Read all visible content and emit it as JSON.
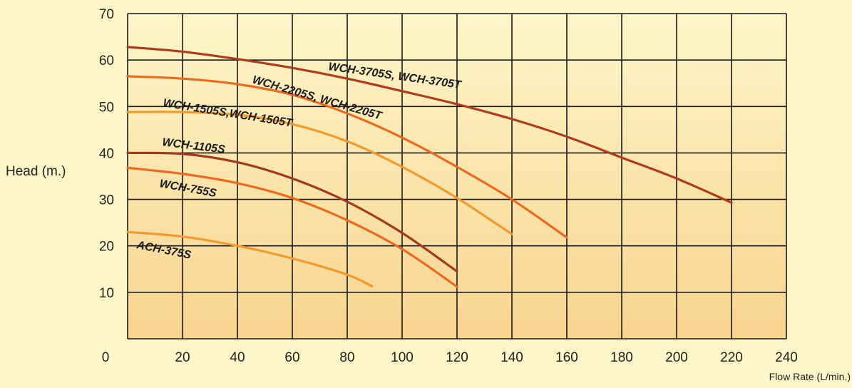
{
  "chart_data": {
    "type": "line",
    "title": "",
    "xlabel": "Flow Rate (L/min.)",
    "ylabel": "Head (m.)",
    "xlim": [
      0,
      240
    ],
    "ylim": [
      0,
      70
    ],
    "xticks": [
      "0",
      "20",
      "40",
      "60",
      "80",
      "100",
      "120",
      "140",
      "160",
      "180",
      "200",
      "220",
      "240"
    ],
    "yticks": [
      "10",
      "20",
      "30",
      "40",
      "50",
      "60",
      "70"
    ],
    "grid": true,
    "legend": "none",
    "colors": {
      "background_top": "#fdf6c9",
      "background_bottom": "#f8d48f",
      "grid": "#1a1a1a"
    },
    "series": [
      {
        "name": "WCH-3705S, WCH-3705T",
        "color": "#b03a1c",
        "x": [
          0,
          20,
          40,
          60,
          80,
          100,
          120,
          140,
          160,
          180,
          200,
          220
        ],
        "y": [
          62.8,
          61.8,
          60.2,
          58.3,
          56,
          53.3,
          50.5,
          47.3,
          43.5,
          39,
          34.5,
          29.3
        ]
      },
      {
        "name": "WCH-2205S, WCH-2205T",
        "color": "#ec6a1e",
        "x": [
          0,
          20,
          40,
          60,
          80,
          100,
          120,
          140,
          160
        ],
        "y": [
          56.5,
          56,
          54.8,
          52.5,
          48.5,
          43.3,
          37,
          30,
          21.8
        ]
      },
      {
        "name": "WCH-1505S,WCH-1505T",
        "color": "#f39a2c",
        "x": [
          0,
          20,
          40,
          60,
          80,
          100,
          120,
          140
        ],
        "y": [
          48.8,
          48.8,
          48.2,
          46.2,
          42.5,
          37,
          30.3,
          22.5
        ]
      },
      {
        "name": "WCH-1105S",
        "color": "#a3391f",
        "x": [
          0,
          20,
          40,
          60,
          80,
          100,
          120
        ],
        "y": [
          40,
          39.8,
          38,
          34.5,
          29.5,
          22.8,
          14.5
        ]
      },
      {
        "name": "WCH-755S",
        "color": "#ec6a1e",
        "x": [
          0,
          20,
          40,
          60,
          80,
          100,
          120
        ],
        "y": [
          36.8,
          35.5,
          33.5,
          30.3,
          25.5,
          19.3,
          11.2
        ]
      },
      {
        "name": "ACH-375S",
        "color": "#f39a2c",
        "x": [
          0,
          20,
          40,
          60,
          80,
          89
        ],
        "y": [
          23,
          22,
          20,
          17.3,
          13.8,
          11.3
        ]
      }
    ]
  }
}
